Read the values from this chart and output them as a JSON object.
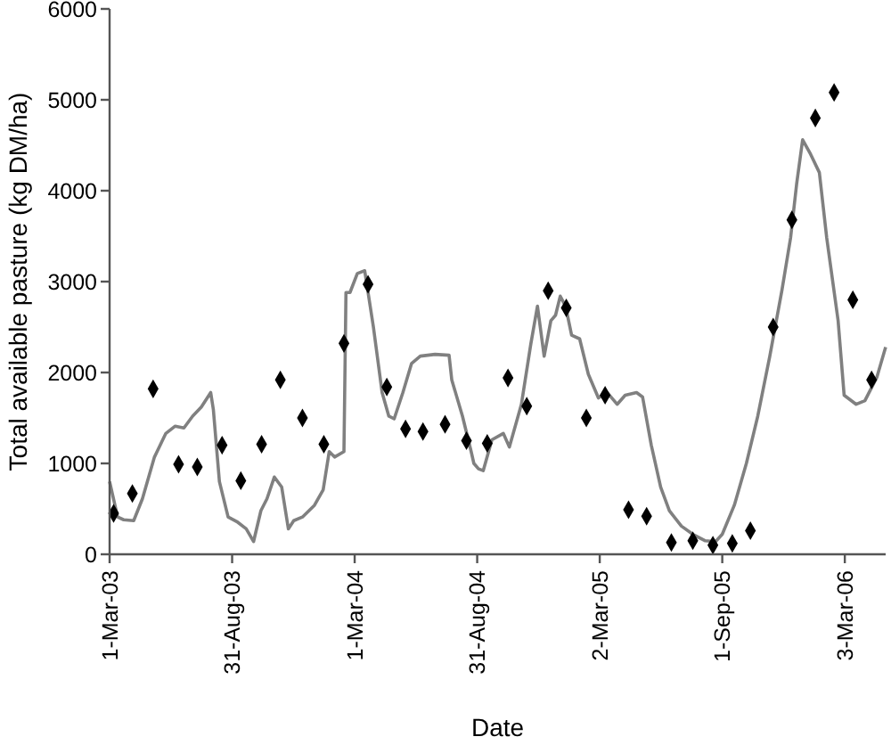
{
  "chart_data": {
    "type": "scatter",
    "xlabel": "Date",
    "ylabel": "Total available pasture (kg DM/ha)",
    "xlim": [
      "2003-03-01",
      "2006-05-03"
    ],
    "xticks": [
      {
        "value": "2003-03-01",
        "label": "1-Mar-03"
      },
      {
        "value": "2003-08-31",
        "label": "31-Aug-03"
      },
      {
        "value": "2004-03-01",
        "label": "1-Mar-04"
      },
      {
        "value": "2004-08-31",
        "label": "31-Aug-04"
      },
      {
        "value": "2005-03-02",
        "label": "2-Mar-05"
      },
      {
        "value": "2005-09-01",
        "label": "1-Sep-05"
      },
      {
        "value": "2006-03-03",
        "label": "3-Mar-06"
      }
    ],
    "ylim": [
      0,
      6000
    ],
    "yticks": [
      0,
      1000,
      2000,
      3000,
      4000,
      5000,
      6000
    ],
    "grid": false,
    "series": [
      {
        "type": "line",
        "color": "#808080",
        "marker": "none",
        "line_style": "solid",
        "x": [
          "2003-03-01",
          "2003-03-13",
          "2003-03-22",
          "2003-04-06",
          "2003-04-19",
          "2003-05-07",
          "2003-05-24",
          "2003-06-07",
          "2003-06-20",
          "2003-07-03",
          "2003-07-16",
          "2003-07-30",
          "2003-08-03",
          "2003-08-12",
          "2003-08-25",
          "2003-09-07",
          "2003-09-21",
          "2003-10-02",
          "2003-10-13",
          "2003-10-22",
          "2003-11-02",
          "2003-11-13",
          "2003-11-23",
          "2003-12-01",
          "2003-12-14",
          "2004-01-01",
          "2004-01-14",
          "2004-01-23",
          "2004-01-31",
          "2004-02-14",
          "2004-02-17",
          "2004-02-23",
          "2004-03-05",
          "2004-03-16",
          "2004-03-29",
          "2004-04-11",
          "2004-04-21",
          "2004-04-29",
          "2004-05-12",
          "2004-05-25",
          "2004-06-07",
          "2004-06-29",
          "2004-07-20",
          "2004-07-24",
          "2004-08-09",
          "2004-08-22",
          "2004-08-26",
          "2004-09-02",
          "2004-09-09",
          "2004-09-22",
          "2004-10-09",
          "2004-10-18",
          "2004-11-05",
          "2004-11-19",
          "2004-11-29",
          "2004-12-09",
          "2004-12-19",
          "2004-12-26",
          "2005-01-02",
          "2005-01-10",
          "2005-01-19",
          "2005-01-31",
          "2005-02-13",
          "2005-02-28",
          "2005-03-13",
          "2005-03-28",
          "2005-04-09",
          "2005-04-26",
          "2005-05-05",
          "2005-05-18",
          "2005-06-01",
          "2005-06-14",
          "2005-07-02",
          "2005-07-19",
          "2005-08-06",
          "2005-08-22",
          "2005-09-01",
          "2005-09-19",
          "2005-10-07",
          "2005-10-24",
          "2005-11-11",
          "2005-11-29",
          "2005-12-12",
          "2005-12-21",
          "2005-12-30",
          "2006-01-11",
          "2006-01-24",
          "2006-02-04",
          "2006-02-21",
          "2006-03-02",
          "2006-03-20",
          "2006-04-02",
          "2006-04-20",
          "2006-05-03"
        ],
        "values": [
          800,
          410,
          380,
          370,
          610,
          1070,
          1330,
          1410,
          1390,
          1520,
          1620,
          1780,
          1590,
          800,
          410,
          360,
          280,
          140,
          480,
          610,
          850,
          740,
          280,
          370,
          410,
          540,
          710,
          1130,
          1070,
          1130,
          2880,
          2880,
          3090,
          3120,
          2500,
          1780,
          1520,
          1490,
          1780,
          2100,
          2180,
          2200,
          2190,
          1920,
          1520,
          1130,
          1000,
          940,
          920,
          1260,
          1330,
          1180,
          1650,
          2310,
          2730,
          2180,
          2570,
          2630,
          2840,
          2730,
          2410,
          2370,
          1980,
          1720,
          1780,
          1650,
          1750,
          1780,
          1730,
          1200,
          740,
          480,
          310,
          220,
          150,
          140,
          220,
          540,
          1000,
          1520,
          2180,
          2900,
          3480,
          4070,
          4560,
          4400,
          4200,
          3480,
          2570,
          1750,
          1650,
          1690,
          1950,
          2280
        ]
      },
      {
        "color": "#000000",
        "marker": "diamond",
        "x": [
          "2003-03-07",
          "2003-04-04",
          "2003-05-05",
          "2003-06-12",
          "2003-07-10",
          "2003-08-16",
          "2003-09-13",
          "2003-10-14",
          "2003-11-11",
          "2003-12-14",
          "2004-01-15",
          "2004-02-14",
          "2004-03-21",
          "2004-04-18",
          "2004-05-16",
          "2004-06-11",
          "2004-07-14",
          "2004-08-15",
          "2004-09-15",
          "2004-10-16",
          "2004-11-13",
          "2004-12-15",
          "2005-01-11",
          "2005-02-10",
          "2005-03-10",
          "2005-04-14",
          "2005-05-11",
          "2005-06-17",
          "2005-07-19",
          "2005-08-18",
          "2005-09-16",
          "2005-10-13",
          "2005-11-16",
          "2005-12-14",
          "2006-01-18",
          "2006-02-15",
          "2006-03-15",
          "2006-04-12"
        ],
        "values": [
          450,
          670,
          1820,
          990,
          960,
          1200,
          810,
          1210,
          1920,
          1500,
          1210,
          2320,
          2970,
          1840,
          1380,
          1350,
          1430,
          1250,
          1220,
          1940,
          1630,
          2900,
          2710,
          1500,
          1750,
          490,
          420,
          130,
          150,
          100,
          120,
          260,
          2500,
          3680,
          4800,
          5080,
          2800,
          1920
        ]
      }
    ]
  }
}
